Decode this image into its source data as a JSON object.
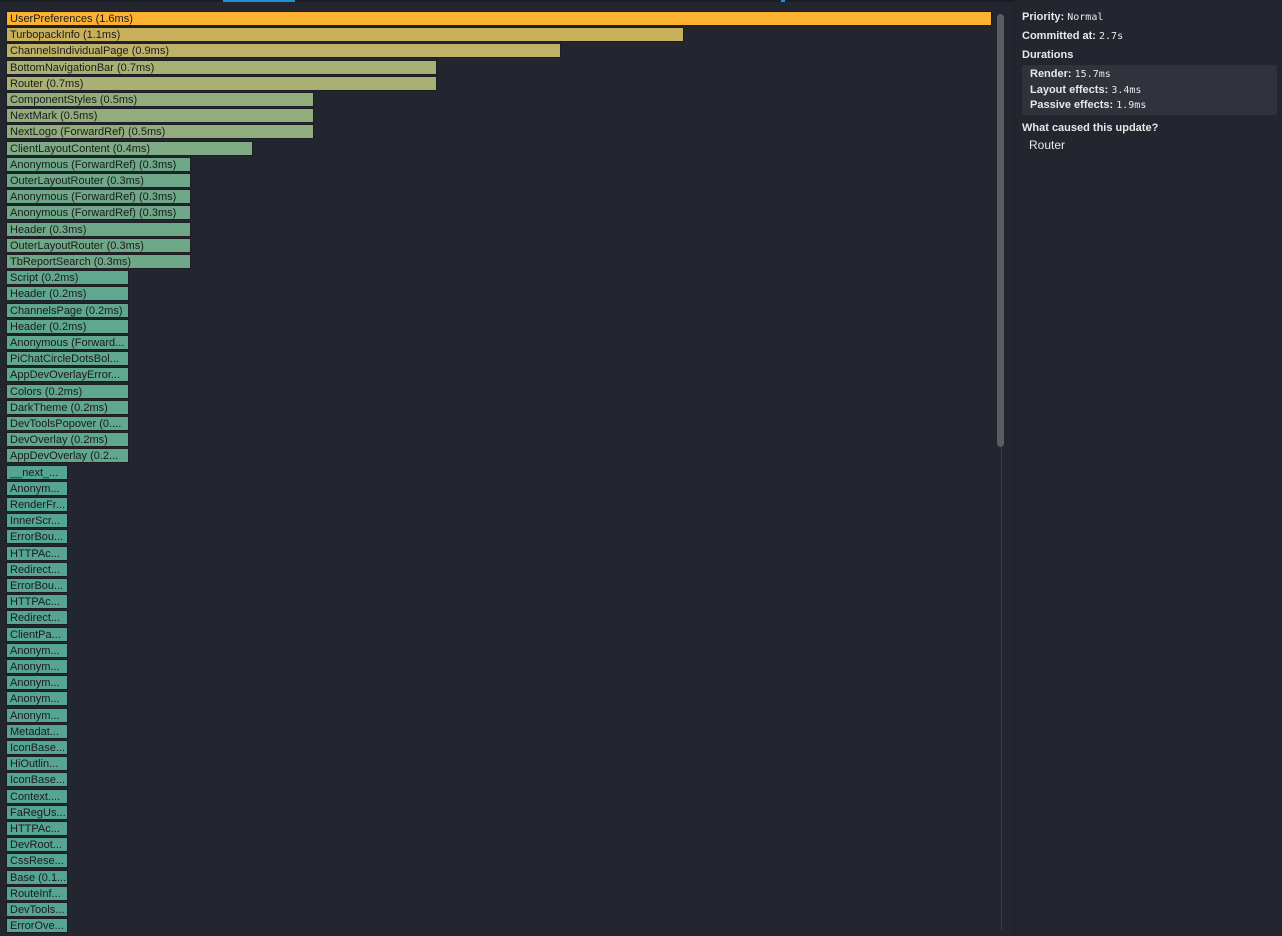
{
  "colors": {
    "background": "#23262e",
    "selected": "#fcb131",
    "accent": "#1f8fd6"
  },
  "flamegraph": {
    "bars": [
      {
        "label": "UserPreferences (1.6ms)",
        "duration_ms": 1.6,
        "color": "#fcb131"
      },
      {
        "label": "TurbopackInfo (1.1ms)",
        "duration_ms": 1.1,
        "color": "#c9b15c"
      },
      {
        "label": "ChannelsIndividualPage (0.9ms)",
        "duration_ms": 0.9,
        "color": "#bdb267"
      },
      {
        "label": "BottomNavigationBar (0.7ms)",
        "duration_ms": 0.7,
        "color": "#a9b074"
      },
      {
        "label": "Router (0.7ms)",
        "duration_ms": 0.7,
        "color": "#a9b074"
      },
      {
        "label": "ComponentStyles (0.5ms)",
        "duration_ms": 0.5,
        "color": "#91ac7d"
      },
      {
        "label": "NextMark (0.5ms)",
        "duration_ms": 0.5,
        "color": "#91ac7d"
      },
      {
        "label": "NextLogo (ForwardRef) (0.5ms)",
        "duration_ms": 0.5,
        "color": "#91ac7d"
      },
      {
        "label": "ClientLayoutContent (0.4ms)",
        "duration_ms": 0.4,
        "color": "#7fab85"
      },
      {
        "label": "Anonymous (ForwardRef) (0.3ms)",
        "duration_ms": 0.3,
        "color": "#6fa889"
      },
      {
        "label": "OuterLayoutRouter (0.3ms)",
        "duration_ms": 0.3,
        "color": "#6fa889"
      },
      {
        "label": "Anonymous (ForwardRef) (0.3ms)",
        "duration_ms": 0.3,
        "color": "#6fa889"
      },
      {
        "label": "Anonymous (ForwardRef) (0.3ms)",
        "duration_ms": 0.3,
        "color": "#6fa889"
      },
      {
        "label": "Header (0.3ms)",
        "duration_ms": 0.3,
        "color": "#6fa889"
      },
      {
        "label": "OuterLayoutRouter (0.3ms)",
        "duration_ms": 0.3,
        "color": "#6fa889"
      },
      {
        "label": "TbReportSearch (0.3ms)",
        "duration_ms": 0.3,
        "color": "#6fa889"
      },
      {
        "label": "Script (0.2ms)",
        "duration_ms": 0.2,
        "color": "#5fa78f"
      },
      {
        "label": "Header (0.2ms)",
        "duration_ms": 0.2,
        "color": "#5fa78f"
      },
      {
        "label": "ChannelsPage (0.2ms)",
        "duration_ms": 0.2,
        "color": "#5fa78f"
      },
      {
        "label": "Header (0.2ms)",
        "duration_ms": 0.2,
        "color": "#5fa78f"
      },
      {
        "label": "Anonymous (Forward...",
        "duration_ms": 0.2,
        "color": "#5fa78f"
      },
      {
        "label": "PiChatCircleDotsBol...",
        "duration_ms": 0.2,
        "color": "#5fa78f"
      },
      {
        "label": "AppDevOverlayError...",
        "duration_ms": 0.2,
        "color": "#5fa78f"
      },
      {
        "label": "Colors (0.2ms)",
        "duration_ms": 0.2,
        "color": "#5fa78f"
      },
      {
        "label": "DarkTheme (0.2ms)",
        "duration_ms": 0.2,
        "color": "#5fa78f"
      },
      {
        "label": "DevToolsPopover (0....",
        "duration_ms": 0.2,
        "color": "#5fa78f"
      },
      {
        "label": "DevOverlay (0.2ms)",
        "duration_ms": 0.2,
        "color": "#5fa78f"
      },
      {
        "label": "AppDevOverlay (0.2...",
        "duration_ms": 0.2,
        "color": "#5fa78f"
      },
      {
        "label": "__next_...",
        "duration_ms": 0.1,
        "color": "#55a592"
      },
      {
        "label": "Anonym...",
        "duration_ms": 0.1,
        "color": "#55a592"
      },
      {
        "label": "RenderFr...",
        "duration_ms": 0.1,
        "color": "#55a592"
      },
      {
        "label": "InnerScr...",
        "duration_ms": 0.1,
        "color": "#55a592"
      },
      {
        "label": "ErrorBou...",
        "duration_ms": 0.1,
        "color": "#55a592"
      },
      {
        "label": "HTTPAc...",
        "duration_ms": 0.1,
        "color": "#55a592"
      },
      {
        "label": "Redirect...",
        "duration_ms": 0.1,
        "color": "#55a592"
      },
      {
        "label": "ErrorBou...",
        "duration_ms": 0.1,
        "color": "#55a592"
      },
      {
        "label": "HTTPAc...",
        "duration_ms": 0.1,
        "color": "#55a592"
      },
      {
        "label": "Redirect...",
        "duration_ms": 0.1,
        "color": "#55a592"
      },
      {
        "label": "ClientPa...",
        "duration_ms": 0.1,
        "color": "#55a592"
      },
      {
        "label": "Anonym...",
        "duration_ms": 0.1,
        "color": "#55a592"
      },
      {
        "label": "Anonym...",
        "duration_ms": 0.1,
        "color": "#55a592"
      },
      {
        "label": "Anonym...",
        "duration_ms": 0.1,
        "color": "#55a592"
      },
      {
        "label": "Anonym...",
        "duration_ms": 0.1,
        "color": "#55a592"
      },
      {
        "label": "Anonym...",
        "duration_ms": 0.1,
        "color": "#55a592"
      },
      {
        "label": "Metadat...",
        "duration_ms": 0.1,
        "color": "#55a592"
      },
      {
        "label": "IconBase...",
        "duration_ms": 0.1,
        "color": "#55a592"
      },
      {
        "label": "HiOutlin...",
        "duration_ms": 0.1,
        "color": "#55a592"
      },
      {
        "label": "IconBase...",
        "duration_ms": 0.1,
        "color": "#55a592"
      },
      {
        "label": "Context....",
        "duration_ms": 0.1,
        "color": "#55a592"
      },
      {
        "label": "FaRegUs...",
        "duration_ms": 0.1,
        "color": "#55a592"
      },
      {
        "label": "HTTPAc...",
        "duration_ms": 0.1,
        "color": "#55a592"
      },
      {
        "label": "DevRoot...",
        "duration_ms": 0.1,
        "color": "#55a592"
      },
      {
        "label": "CssRese...",
        "duration_ms": 0.1,
        "color": "#55a592"
      },
      {
        "label": "Base (0.1...",
        "duration_ms": 0.1,
        "color": "#55a592"
      },
      {
        "label": "RouteInf...",
        "duration_ms": 0.1,
        "color": "#55a592"
      },
      {
        "label": "DevTools...",
        "duration_ms": 0.1,
        "color": "#55a592"
      },
      {
        "label": "ErrorOve...",
        "duration_ms": 0.1,
        "color": "#55a592"
      }
    ]
  },
  "sidebar": {
    "priority_label": "Priority",
    "priority_value": "Normal",
    "committed_label": "Committed at",
    "committed_value": "2.7s",
    "durations_heading": "Durations",
    "render_label": "Render",
    "render_value": "15.7ms",
    "layout_label": "Layout effects",
    "layout_value": "3.4ms",
    "passive_label": "Passive effects",
    "passive_value": "1.9ms",
    "cause_heading": "What caused this update?",
    "cause_value": "Router"
  }
}
